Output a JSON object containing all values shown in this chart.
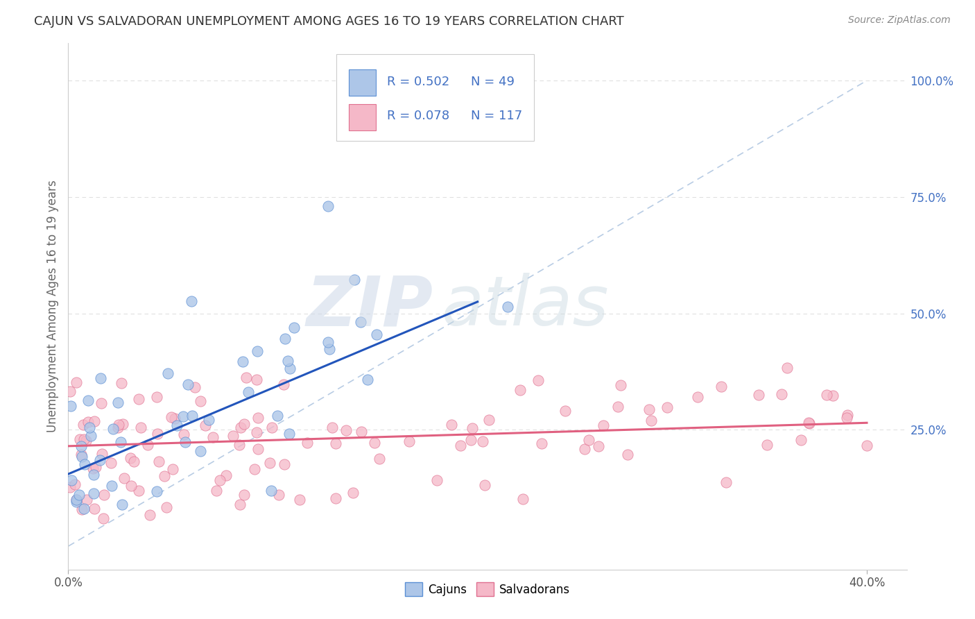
{
  "title": "CAJUN VS SALVADORAN UNEMPLOYMENT AMONG AGES 16 TO 19 YEARS CORRELATION CHART",
  "source": "Source: ZipAtlas.com",
  "ylabel": "Unemployment Among Ages 16 to 19 years",
  "xlim": [
    0.0,
    0.42
  ],
  "ylim": [
    -0.05,
    1.08
  ],
  "ytick_labels": [
    "25.0%",
    "50.0%",
    "75.0%",
    "100.0%"
  ],
  "ytick_values": [
    0.25,
    0.5,
    0.75,
    1.0
  ],
  "legend_R1": "R = 0.502",
  "legend_N1": "N = 49",
  "legend_R2": "R = 0.078",
  "legend_N2": "N = 117",
  "color_cajun": "#adc6e8",
  "color_cajun_edge": "#5b8fd4",
  "color_cajun_line": "#2255bb",
  "color_salvadoran": "#f5b8c8",
  "color_salvadoran_edge": "#e07090",
  "color_salvadoran_line": "#e06080",
  "color_diagonal": "#b8cce4",
  "color_text_blue": "#4472c4",
  "color_grid": "#e0e0e0",
  "background_color": "#ffffff",
  "watermark_zip": "ZIP",
  "watermark_atlas": "atlas",
  "cajun_line_x0": 0.0,
  "cajun_line_y0": 0.155,
  "cajun_line_x1": 0.205,
  "cajun_line_y1": 0.525,
  "salv_line_x0": 0.0,
  "salv_line_y0": 0.215,
  "salv_line_x1": 0.4,
  "salv_line_y1": 0.265
}
